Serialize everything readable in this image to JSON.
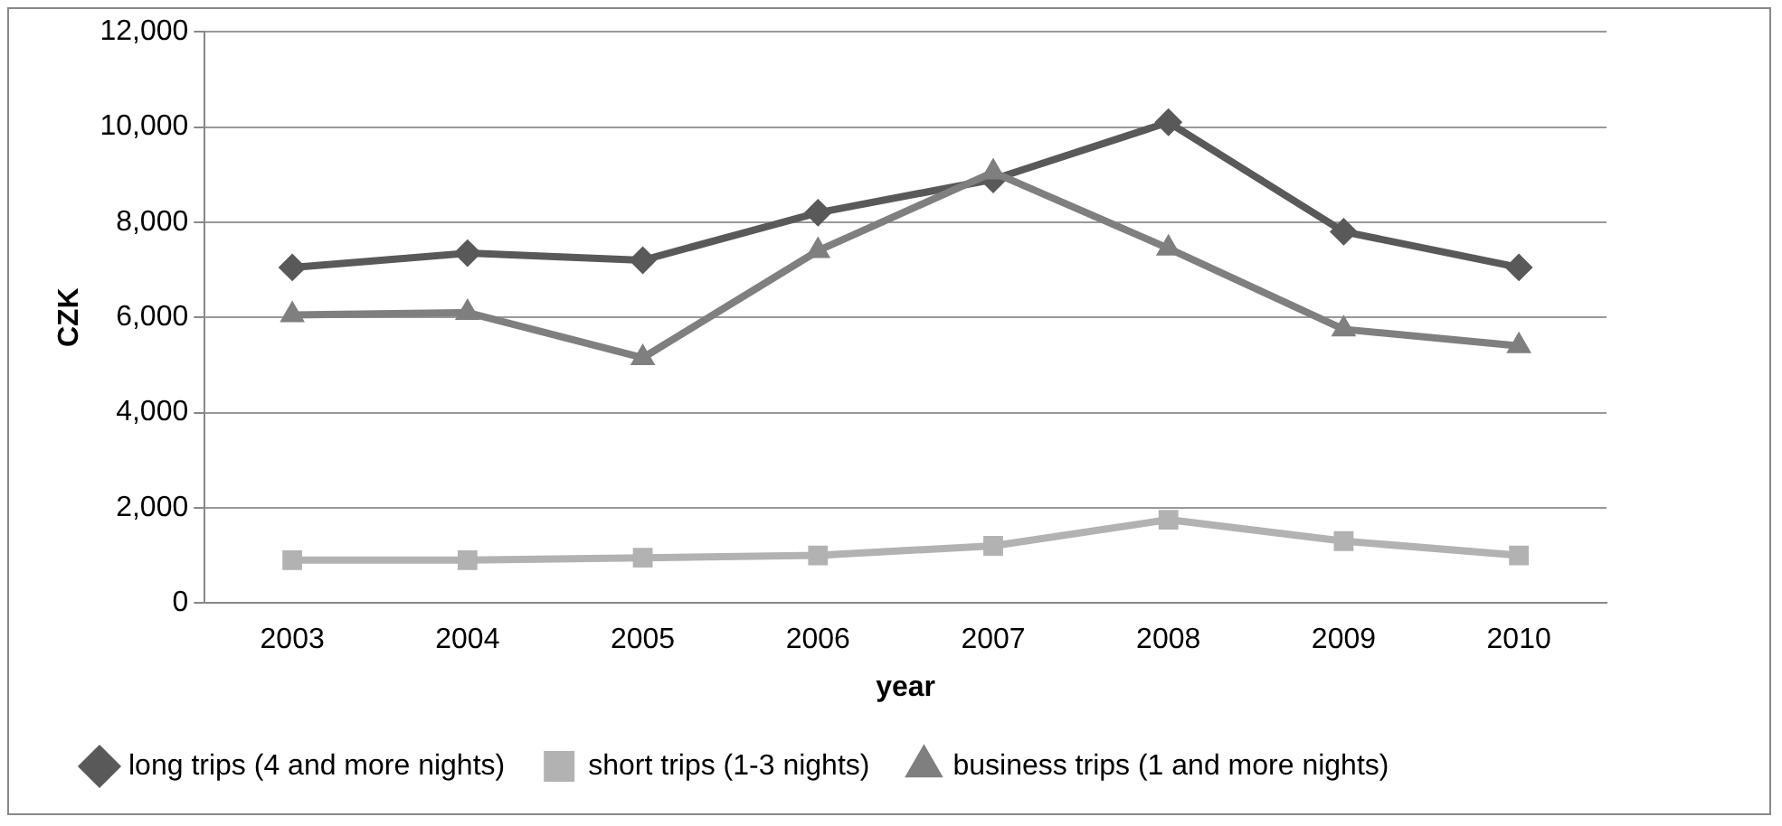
{
  "chart_data": {
    "type": "line",
    "xlabel": "year",
    "ylabel": "CZK",
    "categories": [
      "2003",
      "2004",
      "2005",
      "2006",
      "2007",
      "2008",
      "2009",
      "2010"
    ],
    "series": [
      {
        "name": "long trips (4 and more nights)",
        "color": "#595959",
        "marker": "diamond",
        "values": [
          7050,
          7350,
          7200,
          8200,
          8900,
          10100,
          7800,
          7050
        ]
      },
      {
        "name": "short trips (1-3 nights)",
        "color": "#b2b2b2",
        "marker": "square",
        "values": [
          900,
          900,
          950,
          1000,
          1200,
          1750,
          1300,
          1000
        ]
      },
      {
        "name": "business trips (1 and more nights)",
        "color": "#7f7f7f",
        "marker": "triangle",
        "values": [
          6050,
          6100,
          5150,
          7400,
          9050,
          7450,
          5750,
          5400
        ]
      }
    ],
    "ylim": [
      0,
      12000
    ],
    "yticks": [
      0,
      {
        "value": 2000,
        "label": "2,000"
      },
      {
        "value": 4000,
        "label": "4,000"
      },
      {
        "value": 6000,
        "label": "6,000"
      },
      {
        "value": 8000,
        "label": "8,000"
      },
      {
        "value": 10000,
        "label": "10,000"
      },
      {
        "value": 12000,
        "label": "12,000"
      }
    ],
    "grid": "y",
    "legend": "bottom",
    "line_style": "solid"
  }
}
